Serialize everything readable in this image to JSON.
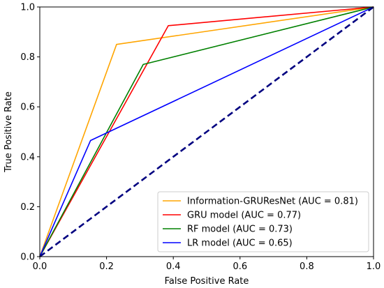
{
  "chart_data": {
    "type": "line",
    "title": "",
    "xlabel": "False Positive Rate",
    "ylabel": "True Positive Rate",
    "xlim": [
      0.0,
      1.0
    ],
    "ylim": [
      0.0,
      1.0
    ],
    "xticks": [
      "0.0",
      "0.2",
      "0.4",
      "0.6",
      "0.8",
      "1.0"
    ],
    "yticks": [
      "0.0",
      "0.2",
      "0.4",
      "0.6",
      "0.8",
      "1.0"
    ],
    "grid": false,
    "legend_position": "lower-right",
    "series": [
      {
        "name": "Information-GRUResNet (AUC = 0.81)",
        "color": "#ffa500",
        "x": [
          0.0,
          0.23,
          1.0
        ],
        "y": [
          0.0,
          0.85,
          1.0
        ]
      },
      {
        "name": "GRU model (AUC = 0.77)",
        "color": "#ff0000",
        "x": [
          0.0,
          0.385,
          1.0
        ],
        "y": [
          0.0,
          0.925,
          1.0
        ]
      },
      {
        "name": "RF model (AUC = 0.73)",
        "color": "#008000",
        "x": [
          0.0,
          0.31,
          1.0
        ],
        "y": [
          0.0,
          0.77,
          1.0
        ]
      },
      {
        "name": "LR model (AUC = 0.65)",
        "color": "#0000ff",
        "x": [
          0.0,
          0.152,
          1.0
        ],
        "y": [
          0.0,
          0.465,
          1.0
        ]
      }
    ],
    "reference_line": {
      "color": "#000080",
      "style": "dashed",
      "x": [
        0.0,
        1.0
      ],
      "y": [
        0.0,
        1.0
      ]
    }
  }
}
